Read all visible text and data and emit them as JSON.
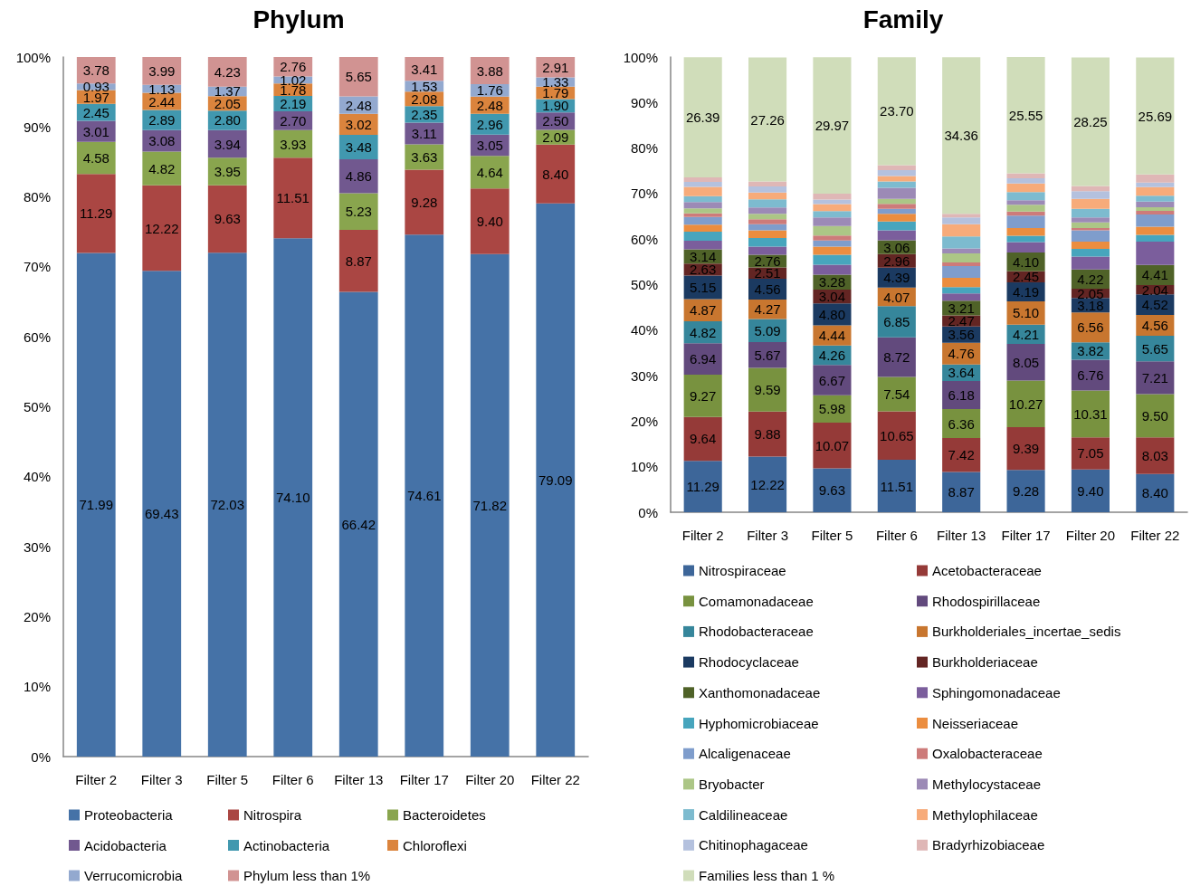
{
  "chart_data": [
    {
      "type": "bar",
      "title": "Phylum",
      "categories": [
        "Filter 2",
        "Filter 3",
        "Filter 5",
        "Filter 6",
        "Filter 13",
        "Filter 17",
        "Filter 20",
        "Filter 22"
      ],
      "stacked": true,
      "legend": "bottom",
      "ylim": [
        0,
        100
      ],
      "yticks": [
        {
          "value": 0,
          "label": "0%"
        },
        {
          "value": 10,
          "label": "10%"
        },
        {
          "value": 20,
          "label": "20%"
        },
        {
          "value": 30,
          "label": "30%"
        },
        {
          "value": 40,
          "label": "40%"
        },
        {
          "value": 50,
          "label": "50%"
        },
        {
          "value": 60,
          "label": "60%"
        },
        {
          "value": 70,
          "label": "70%"
        },
        {
          "value": 80,
          "label": "80%"
        },
        {
          "value": 90,
          "label": "90%"
        },
        {
          "value": 100,
          "label": "100%"
        }
      ],
      "series": [
        {
          "name": "Proteobacteria",
          "color": "#4572a7",
          "values": [
            71.99,
            69.43,
            72.03,
            74.1,
            66.42,
            74.61,
            71.82,
            79.09
          ],
          "value_labels": [
            "71.99",
            "69.43",
            "72.03",
            "74.10",
            "66.42",
            "74.61",
            "71.82",
            "79.09"
          ]
        },
        {
          "name": "Nitrospira",
          "color": "#aa4643",
          "values": [
            11.29,
            12.22,
            9.63,
            11.51,
            8.87,
            9.28,
            9.4,
            8.4
          ],
          "value_labels": [
            "11.29",
            "12.22",
            "9.63",
            "11.51",
            "8.87",
            "9.28",
            "9.40",
            "8.40"
          ]
        },
        {
          "name": "Bacteroidetes",
          "color": "#89a54e",
          "values": [
            4.58,
            4.82,
            3.95,
            3.93,
            5.23,
            3.63,
            4.64,
            2.09
          ],
          "value_labels": [
            "4.58",
            "4.82",
            "3.95",
            "3.93",
            "5.23",
            "3.63",
            "4.64",
            "2.09"
          ]
        },
        {
          "name": "Acidobacteria",
          "color": "#71588f",
          "values": [
            3.01,
            3.08,
            3.94,
            2.7,
            4.86,
            3.11,
            3.05,
            2.5
          ],
          "value_labels": [
            "3.01",
            "3.08",
            "3.94",
            "2.70",
            "4.86",
            "3.11",
            "3.05",
            "2.50"
          ]
        },
        {
          "name": "Actinobacteria",
          "color": "#4198af",
          "values": [
            2.45,
            2.89,
            2.8,
            2.19,
            3.48,
            2.35,
            2.96,
            1.9
          ],
          "value_labels": [
            "2.45",
            "2.89",
            "2.80",
            "2.19",
            "3.48",
            "2.35",
            "2.96",
            "1.90"
          ]
        },
        {
          "name": "Chloroflexi",
          "color": "#db843d",
          "values": [
            1.97,
            2.44,
            2.05,
            1.78,
            3.02,
            2.08,
            2.48,
            1.79
          ],
          "value_labels": [
            "1.97",
            "2.44",
            "2.05",
            "1.78",
            "3.02",
            "2.08",
            "2.48",
            "1.79"
          ]
        },
        {
          "name": "Verrucomicrobia",
          "color": "#93a9cf",
          "values": [
            0.93,
            1.13,
            1.37,
            1.02,
            2.48,
            1.53,
            1.76,
            1.33
          ],
          "value_labels": [
            "0.93",
            "1.13",
            "1.37",
            "1.02",
            "2.48",
            "1.53",
            "1.76",
            "1.33"
          ]
        },
        {
          "name": "Phylum less than 1%",
          "color": "#d19392",
          "values": [
            3.78,
            3.99,
            4.23,
            2.76,
            5.65,
            3.41,
            3.88,
            2.91
          ],
          "value_labels": [
            "3.78",
            "3.99",
            "4.23",
            "2.76",
            "5.65",
            "3.41",
            "3.88",
            "2.91"
          ]
        }
      ]
    },
    {
      "type": "bar",
      "title": "Family",
      "categories": [
        "Filter 2",
        "Filter 3",
        "Filter 5",
        "Filter 6",
        "Filter 13",
        "Filter 17",
        "Filter 20",
        "Filter 22"
      ],
      "stacked": true,
      "legend": "bottom",
      "ylim": [
        0,
        100
      ],
      "yticks": [
        {
          "value": 0,
          "label": "0%"
        },
        {
          "value": 10,
          "label": "10%"
        },
        {
          "value": 20,
          "label": "20%"
        },
        {
          "value": 30,
          "label": "30%"
        },
        {
          "value": 40,
          "label": "40%"
        },
        {
          "value": 50,
          "label": "50%"
        },
        {
          "value": 60,
          "label": "60%"
        },
        {
          "value": 70,
          "label": "70%"
        },
        {
          "value": 80,
          "label": "80%"
        },
        {
          "value": 90,
          "label": "90%"
        },
        {
          "value": 100,
          "label": "100%"
        }
      ],
      "series": [
        {
          "name": "Nitrospiraceae",
          "color": "#3d6699",
          "values": [
            11.29,
            12.22,
            9.63,
            11.51,
            8.87,
            9.28,
            9.4,
            8.4
          ],
          "value_labels": [
            "11.29",
            "12.22",
            "9.63",
            "11.51",
            "8.87",
            "9.28",
            "9.40",
            "8.40"
          ]
        },
        {
          "name": "Acetobacteraceae",
          "color": "#953a38",
          "values": [
            9.64,
            9.88,
            10.07,
            10.65,
            7.42,
            9.39,
            7.05,
            8.03
          ],
          "value_labels": [
            "9.64",
            "9.88",
            "10.07",
            "10.65",
            "7.42",
            "9.39",
            "7.05",
            "8.03"
          ]
        },
        {
          "name": "Comamonadaceae",
          "color": "#78923f",
          "values": [
            9.27,
            9.59,
            5.98,
            7.54,
            6.36,
            10.27,
            10.31,
            9.5
          ],
          "value_labels": [
            "9.27",
            "9.59",
            "5.98",
            "7.54",
            "6.36",
            "10.27",
            "10.31",
            "9.50"
          ]
        },
        {
          "name": "Rhodospirillaceae",
          "color": "#624a7d",
          "values": [
            6.94,
            5.67,
            6.67,
            8.72,
            6.18,
            8.05,
            6.76,
            7.21
          ],
          "value_labels": [
            "6.94",
            "5.67",
            "6.67",
            "8.72",
            "6.18",
            "8.05",
            "6.76",
            "7.21"
          ]
        },
        {
          "name": "Rhodobacteraceae",
          "color": "#36869b",
          "values": [
            4.82,
            5.09,
            4.26,
            6.85,
            3.64,
            4.21,
            3.82,
            5.65
          ],
          "value_labels": [
            "4.82",
            "5.09",
            "4.26",
            "6.85",
            "3.64",
            "4.21",
            "3.82",
            "5.65"
          ]
        },
        {
          "name": "Burkholderiales_incertae_sedis",
          "color": "#c8762f",
          "values": [
            4.87,
            4.27,
            4.44,
            4.07,
            4.76,
            5.1,
            6.56,
            4.56
          ],
          "value_labels": [
            "4.87",
            "4.27",
            "4.44",
            "4.07",
            "4.76",
            "5.10",
            "6.56",
            "4.56"
          ]
        },
        {
          "name": "Rhodocyclaceae",
          "color": "#1b3a61",
          "values": [
            5.15,
            4.56,
            4.8,
            4.39,
            3.56,
            4.19,
            3.18,
            4.52
          ],
          "value_labels": [
            "5.15",
            "4.56",
            "4.80",
            "4.39",
            "3.56",
            "4.19",
            "3.18",
            "4.52"
          ]
        },
        {
          "name": "Burkholderiaceae",
          "color": "#632523",
          "values": [
            2.63,
            2.51,
            3.04,
            2.96,
            2.47,
            2.45,
            2.05,
            2.04
          ],
          "value_labels": [
            "2.63",
            "2.51",
            "3.04",
            "2.96",
            "2.47",
            "2.45",
            "2.05",
            "2.04"
          ]
        },
        {
          "name": "Xanthomonadaceae",
          "color": "#4f6228",
          "values": [
            3.14,
            2.76,
            3.28,
            3.06,
            3.21,
            4.1,
            4.22,
            4.41
          ],
          "value_labels": [
            "3.14",
            "2.76",
            "3.28",
            "3.06",
            "3.21",
            "4.10",
            "4.22",
            "4.41"
          ]
        },
        {
          "name": "Sphingomonadaceae",
          "color": "#7b5e9c",
          "values": [
            1.9,
            1.8,
            2.2,
            2.2,
            1.6,
            2.3,
            2.8,
            5.1
          ]
        },
        {
          "name": "Hyphomicrobiaceae",
          "color": "#47a5bd",
          "values": [
            2.0,
            1.9,
            2.2,
            1.9,
            1.4,
            1.4,
            1.7,
            1.5
          ]
        },
        {
          "name": "Neisseriaceae",
          "color": "#eb8d3f",
          "values": [
            1.5,
            1.7,
            1.8,
            1.7,
            2.0,
            1.7,
            1.6,
            1.8
          ]
        },
        {
          "name": "Alcaligenaceae",
          "color": "#7f9dcc",
          "values": [
            1.7,
            1.3,
            1.3,
            1.1,
            2.6,
            2.7,
            2.5,
            2.7
          ]
        },
        {
          "name": "Oxalobacteraceae",
          "color": "#cd7b7a",
          "values": [
            0.8,
            1.1,
            1.1,
            1.1,
            0.8,
            0.9,
            0.5,
            0.8
          ]
        },
        {
          "name": "Bryobacter",
          "color": "#acc686",
          "values": [
            1.1,
            1.2,
            2.1,
            1.1,
            2.0,
            1.5,
            1.2,
            0.8
          ]
        },
        {
          "name": "Methylocystaceae",
          "color": "#9c8ab6",
          "values": [
            1.4,
            1.4,
            1.9,
            2.4,
            1.1,
            1.0,
            1.1,
            1.2
          ]
        },
        {
          "name": "Caldilineaceae",
          "color": "#7dbbcf",
          "values": [
            1.3,
            1.8,
            1.4,
            1.4,
            2.6,
            1.8,
            1.9,
            1.3
          ]
        },
        {
          "name": "Methylophilaceae",
          "color": "#f7ab7a",
          "values": [
            2.0,
            1.5,
            1.5,
            1.2,
            2.7,
            1.9,
            2.2,
            1.9
          ]
        },
        {
          "name": "Chitinophagaceae",
          "color": "#b4c1de",
          "values": [
            1.1,
            1.3,
            1.0,
            1.3,
            1.5,
            1.1,
            1.7,
            1.0
          ]
        },
        {
          "name": "Bradyrhizobiaceae",
          "color": "#dfb7b6",
          "values": [
            1.0,
            1.1,
            1.3,
            1.1,
            0.8,
            1.1,
            1.1,
            1.8
          ]
        },
        {
          "name": "Families less than 1 %",
          "color": "#d0ddba",
          "values": [
            26.39,
            27.26,
            29.97,
            23.7,
            34.36,
            25.55,
            28.25,
            25.69
          ],
          "value_labels": [
            "26.39",
            "27.26",
            "29.97",
            "23.70",
            "34.36",
            "25.55",
            "28.25",
            "25.69"
          ]
        }
      ]
    }
  ]
}
